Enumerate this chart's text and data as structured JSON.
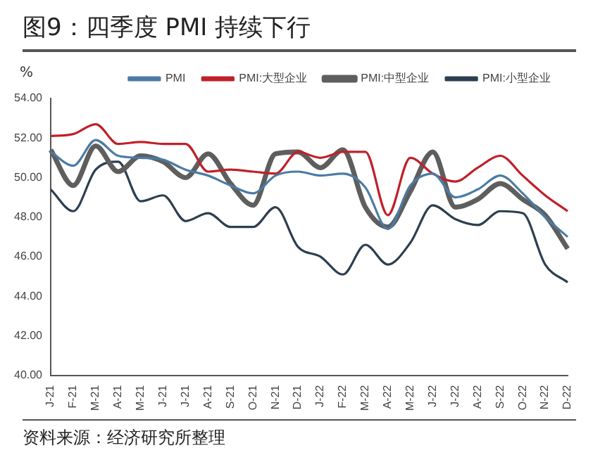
{
  "chart_data": {
    "type": "line",
    "title": "图9：四季度 PMI 持续下行",
    "ylabel": "%",
    "annotations": [
      "资料来源：经济研究所整理"
    ],
    "categories": [
      "J-21",
      "F-21",
      "M-21",
      "A-21",
      "M-21",
      "J-21",
      "J-21",
      "A-21",
      "S-21",
      "O-21",
      "N-21",
      "D-21",
      "J-22",
      "F-22",
      "M-22",
      "A-22",
      "M-22",
      "J-22",
      "J-22",
      "A-22",
      "S-22",
      "O-22",
      "N-22",
      "D-22"
    ],
    "series": [
      {
        "name": "PMI",
        "color": "#4a7ba6",
        "values": [
          51.3,
          50.6,
          51.9,
          51.1,
          51.0,
          50.9,
          50.4,
          50.1,
          49.6,
          49.2,
          50.1,
          50.3,
          50.1,
          50.2,
          49.5,
          47.4,
          49.6,
          50.2,
          49.0,
          49.4,
          50.1,
          49.2,
          48.0,
          47.0
        ]
      },
      {
        "name": "PMI:大型企业",
        "color": "#c0202a",
        "values": [
          52.1,
          52.2,
          52.7,
          51.7,
          51.8,
          51.7,
          51.7,
          50.3,
          50.4,
          50.3,
          50.2,
          51.3,
          51.0,
          51.3,
          51.3,
          48.1,
          51.0,
          50.2,
          49.8,
          50.5,
          51.1,
          50.1,
          49.1,
          48.3
        ]
      },
      {
        "name": "PMI:中型企业",
        "color": "#5e5e5e",
        "values": [
          51.4,
          49.6,
          51.6,
          50.3,
          51.1,
          50.8,
          50.0,
          51.2,
          49.7,
          48.6,
          51.2,
          51.3,
          50.5,
          51.4,
          48.5,
          47.5,
          49.3,
          51.3,
          48.5,
          48.9,
          49.7,
          48.9,
          48.1,
          46.4
        ]
      },
      {
        "name": "PMI:小型企业",
        "color": "#2d3e50",
        "values": [
          49.4,
          48.3,
          50.4,
          50.8,
          48.8,
          49.1,
          47.8,
          48.2,
          47.5,
          47.5,
          48.5,
          46.5,
          46.0,
          45.1,
          46.6,
          45.6,
          46.7,
          48.6,
          47.9,
          47.6,
          48.3,
          48.2,
          45.6,
          44.7
        ]
      }
    ],
    "ylim": [
      40,
      54
    ],
    "yticks": [
      {
        "value": 40,
        "label": "40.00"
      },
      {
        "value": 42,
        "label": "42.00"
      },
      {
        "value": 44,
        "label": "44.00"
      },
      {
        "value": 46,
        "label": "46.00"
      },
      {
        "value": 48,
        "label": "48.00"
      },
      {
        "value": 50,
        "label": "50.00"
      },
      {
        "value": 52,
        "label": "52.00"
      },
      {
        "value": 54,
        "label": "54.00"
      }
    ],
    "grid": false,
    "legend": "top",
    "marker": "none",
    "line_style": "solid"
  }
}
